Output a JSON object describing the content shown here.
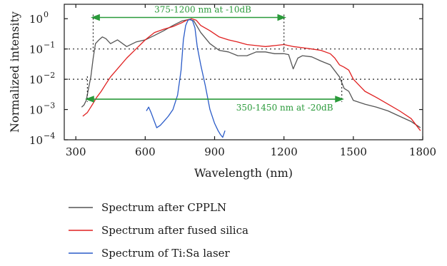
{
  "chart_data": {
    "type": "line",
    "xlabel": "Wavelength (nm)",
    "ylabel": "Normalized intensity",
    "xscale": "linear",
    "yscale": "log",
    "xlim": [
      250,
      1800
    ],
    "ylim": [
      0.0001,
      3
    ],
    "x_ticks": [
      300,
      600,
      900,
      1200,
      1500,
      1800
    ],
    "x_tick_labels": [
      "300",
      "600",
      "900",
      "1200",
      "1500",
      "1800"
    ],
    "y_ticks": [
      0.0001,
      0.001,
      0.01,
      0.1,
      1
    ],
    "y_tick_labels": [
      {
        "base": "10",
        "exp": "−4"
      },
      {
        "base": "10",
        "exp": "−3"
      },
      {
        "base": "10",
        "exp": "−2"
      },
      {
        "base": "10",
        "exp": "−1"
      },
      {
        "base": "10",
        "exp": "0"
      }
    ],
    "reference_lines": [
      0.1,
      0.01
    ],
    "legend_position": "below-plot",
    "annotations": [
      {
        "text": "375-1200 nm at -10dB",
        "x_start": 375,
        "x_end": 1200,
        "level": 0.1,
        "y_arrow": 1.1
      },
      {
        "text": "350-1450 nm at -20dB",
        "x_start": 350,
        "x_end": 1450,
        "level": 0.01,
        "y_arrow": 0.0022
      }
    ],
    "annotation_color": "#2a9a3a",
    "series": [
      {
        "name": "Spectrum after CPPLN",
        "color": "#555555",
        "x": [
          325,
          335,
          345,
          355,
          365,
          375,
          385,
          400,
          415,
          430,
          450,
          480,
          520,
          560,
          600,
          640,
          680,
          720,
          760,
          790,
          810,
          840,
          880,
          920,
          960,
          1000,
          1040,
          1080,
          1120,
          1160,
          1200,
          1220,
          1240,
          1260,
          1280,
          1320,
          1360,
          1400,
          1440,
          1460,
          1480,
          1500,
          1550,
          1600,
          1650,
          1700,
          1750,
          1790
        ],
        "y": [
          0.0012,
          0.0014,
          0.002,
          0.005,
          0.012,
          0.05,
          0.15,
          0.2,
          0.25,
          0.22,
          0.15,
          0.2,
          0.12,
          0.17,
          0.2,
          0.28,
          0.4,
          0.6,
          0.85,
          0.95,
          0.85,
          0.35,
          0.15,
          0.09,
          0.08,
          0.06,
          0.06,
          0.08,
          0.08,
          0.07,
          0.07,
          0.065,
          0.022,
          0.05,
          0.06,
          0.055,
          0.04,
          0.03,
          0.012,
          0.005,
          0.004,
          0.002,
          0.0015,
          0.0012,
          0.0009,
          0.0006,
          0.0004,
          0.00025
        ]
      },
      {
        "name": "Spectrum after fused silica",
        "color": "#e02020",
        "x": [
          330,
          350,
          370,
          390,
          410,
          430,
          450,
          480,
          520,
          560,
          600,
          640,
          680,
          720,
          760,
          780,
          800,
          820,
          840,
          880,
          920,
          960,
          1000,
          1040,
          1080,
          1120,
          1160,
          1200,
          1240,
          1280,
          1320,
          1360,
          1400,
          1420,
          1440,
          1460,
          1480,
          1500,
          1550,
          1600,
          1650,
          1700,
          1750,
          1790
        ],
        "y": [
          0.0006,
          0.0008,
          0.0014,
          0.0025,
          0.004,
          0.007,
          0.012,
          0.022,
          0.05,
          0.1,
          0.2,
          0.35,
          0.45,
          0.55,
          0.75,
          0.9,
          1.0,
          0.9,
          0.6,
          0.4,
          0.25,
          0.2,
          0.17,
          0.14,
          0.13,
          0.12,
          0.13,
          0.14,
          0.12,
          0.11,
          0.1,
          0.09,
          0.07,
          0.05,
          0.03,
          0.025,
          0.02,
          0.01,
          0.004,
          0.0025,
          0.0015,
          0.0009,
          0.0005,
          0.0002
        ]
      },
      {
        "name": "Spectrum of Ti:Sa laser",
        "color": "#2a5bc8",
        "x": [
          605,
          615,
          625,
          635,
          650,
          665,
          680,
          700,
          720,
          740,
          755,
          765,
          775,
          785,
          795,
          805,
          815,
          825,
          840,
          860,
          880,
          900,
          915,
          925,
          935,
          945
        ],
        "y": [
          0.0009,
          0.0012,
          0.0008,
          0.0005,
          0.00025,
          0.0003,
          0.0004,
          0.0006,
          0.001,
          0.003,
          0.02,
          0.2,
          0.6,
          0.9,
          0.95,
          0.85,
          0.5,
          0.12,
          0.03,
          0.006,
          0.001,
          0.00035,
          0.0002,
          0.00015,
          0.00012,
          0.0002
        ]
      }
    ]
  }
}
